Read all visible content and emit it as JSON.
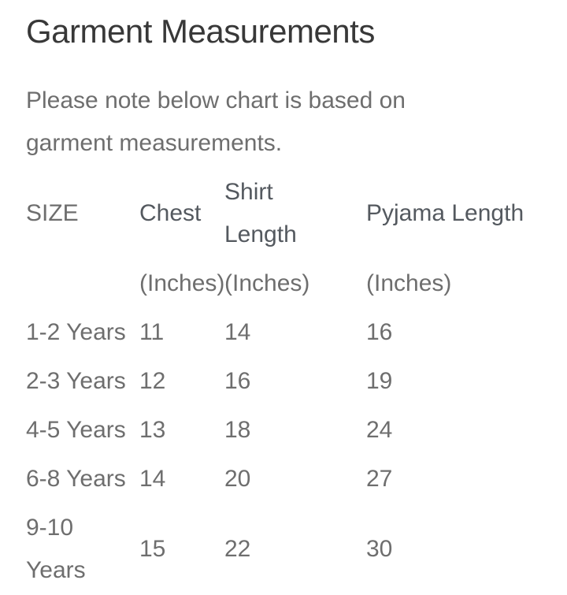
{
  "page": {
    "title": "Garment Measurements",
    "note_line1": "Please note below chart is based on",
    "note_line2": "garment measurements."
  },
  "colors": {
    "background": "#ffffff",
    "title_text": "#383838",
    "body_text": "#6e6e6e",
    "bold_header_text": "#54595f"
  },
  "table": {
    "headers": [
      {
        "label": "SIZE",
        "unit": ""
      },
      {
        "label": "Chest",
        "unit": "(Inches)"
      },
      {
        "label": "Shirt Length",
        "unit": "(Inches)"
      },
      {
        "label": "Pyjama Length",
        "unit": "(Inches)"
      }
    ],
    "rows": [
      {
        "size": "1-2 Years",
        "chest": "11",
        "shirt_length": "14",
        "pyjama_length": "16"
      },
      {
        "size": "2-3 Years",
        "chest": "12",
        "shirt_length": "16",
        "pyjama_length": "19"
      },
      {
        "size": "4-5 Years",
        "chest": "13",
        "shirt_length": "18",
        "pyjama_length": "24"
      },
      {
        "size": "6-8 Years",
        "chest": "14",
        "shirt_length": "20",
        "pyjama_length": "27"
      },
      {
        "size": "9-10 Years",
        "chest": "15",
        "shirt_length": "22",
        "pyjama_length": "30"
      }
    ]
  }
}
